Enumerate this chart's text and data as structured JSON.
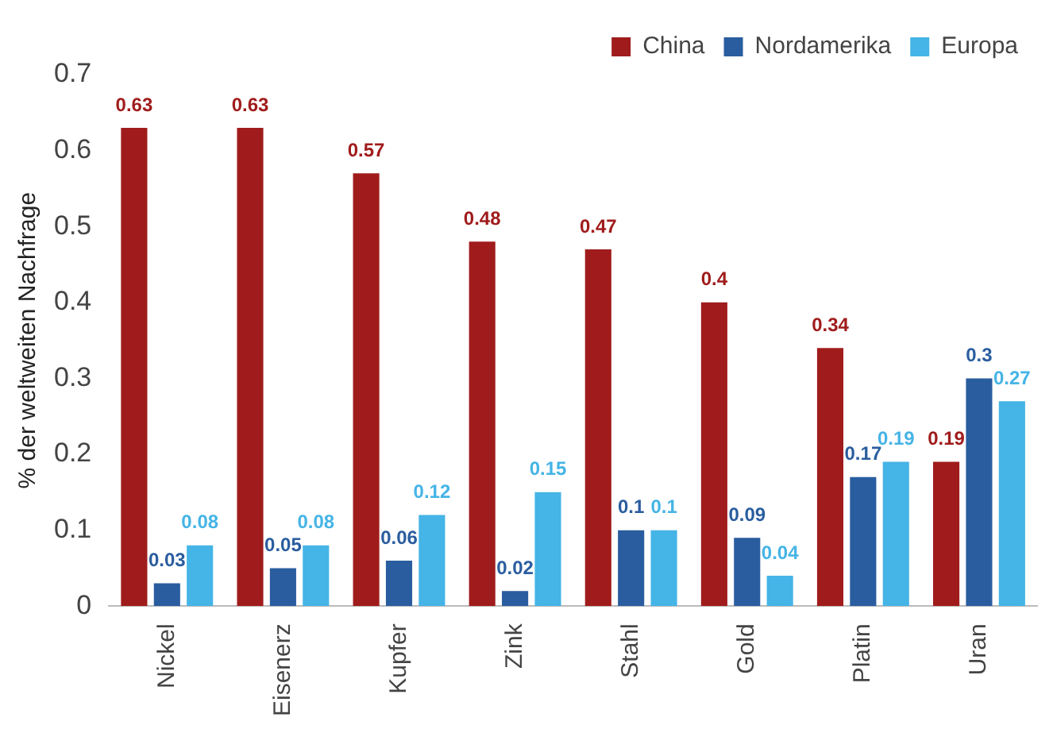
{
  "chart_data": {
    "type": "bar",
    "ylabel": "% der weltweiten Nachfrage",
    "categories": [
      "Nickel",
      "Eisenerz",
      "Kupfer",
      "Zink",
      "Stahl",
      "Gold",
      "Platin",
      "Uran"
    ],
    "series": [
      {
        "name": "China",
        "color": "#a01c1c",
        "values": [
          0.63,
          0.63,
          0.57,
          0.48,
          0.47,
          0.4,
          0.34,
          0.19
        ]
      },
      {
        "name": "Nordamerika",
        "color": "#2a5d9f",
        "values": [
          0.03,
          0.05,
          0.06,
          0.02,
          0.1,
          0.09,
          0.17,
          0.3
        ]
      },
      {
        "name": "Europa",
        "color": "#45b4e6",
        "values": [
          0.08,
          0.08,
          0.12,
          0.15,
          0.1,
          0.04,
          0.19,
          0.27
        ]
      }
    ],
    "ylim": [
      0,
      0.7
    ],
    "yticks": [
      0,
      0.1,
      0.2,
      0.3,
      0.4,
      0.5,
      0.6,
      0.7
    ],
    "grid": false,
    "legend": "top right",
    "data_labels": true
  }
}
